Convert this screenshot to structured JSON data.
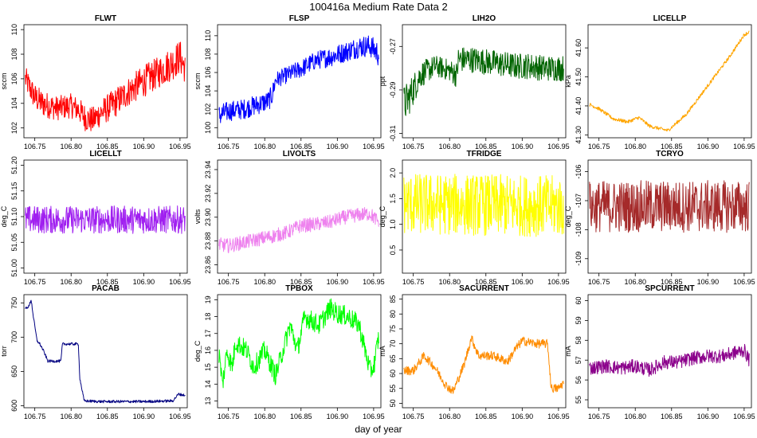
{
  "figure": {
    "title": "100416a   Medium Rate Data 2",
    "xlabel": "day of year"
  },
  "chart_data": [
    {
      "type": "line",
      "title": "FLWT",
      "ylabel": "sccm",
      "color": "#ff0000",
      "xlim": [
        106.735,
        106.96
      ],
      "xticks": [
        106.75,
        106.8,
        106.85,
        106.9,
        106.95
      ],
      "ylim": [
        101.2,
        110.4
      ],
      "yticks": [
        102,
        104,
        106,
        108,
        110
      ],
      "ytick_labels": [
        "102",
        "104",
        "106",
        "108",
        "110"
      ],
      "ylabel_rotated": true,
      "x": [
        106.737,
        106.75,
        106.76,
        106.78,
        106.8,
        106.81,
        106.82,
        106.83,
        106.84,
        106.86,
        106.88,
        106.9,
        106.92,
        106.94,
        106.95,
        106.957
      ],
      "center": [
        106.0,
        104.5,
        104.0,
        103.6,
        103.8,
        103.5,
        102.8,
        102.6,
        103.2,
        104.0,
        105.0,
        105.8,
        106.5,
        107.3,
        107.8,
        106.8
      ],
      "spread": [
        1.0,
        1.1,
        1.1,
        1.0,
        1.0,
        1.0,
        1.1,
        1.1,
        1.1,
        1.2,
        1.2,
        1.3,
        1.3,
        1.4,
        1.4,
        1.2
      ]
    },
    {
      "type": "line",
      "title": "FLSP",
      "ylabel": "sccm",
      "color": "#0000ff",
      "xlim": [
        106.735,
        106.96
      ],
      "xticks": [
        106.75,
        106.8,
        106.85,
        106.9,
        106.95
      ],
      "ylim": [
        98.9,
        111.2
      ],
      "yticks": [
        100,
        102,
        104,
        106,
        108,
        110
      ],
      "ytick_labels": [
        "100",
        "102",
        "104",
        "106",
        "108",
        "110"
      ],
      "ylabel_rotated": true,
      "x": [
        106.737,
        106.75,
        106.77,
        106.79,
        106.805,
        106.81,
        106.815,
        106.83,
        106.85,
        106.87,
        106.89,
        106.91,
        106.93,
        106.945,
        106.957
      ],
      "center": [
        101.3,
        101.8,
        102.0,
        102.5,
        102.9,
        103.5,
        105.2,
        105.7,
        106.4,
        107.3,
        107.7,
        108.2,
        108.8,
        108.9,
        108.0
      ],
      "spread": [
        1.2,
        1.1,
        1.1,
        1.1,
        1.1,
        1.1,
        0.9,
        0.9,
        1.0,
        1.0,
        1.1,
        1.1,
        1.2,
        1.2,
        1.4
      ]
    },
    {
      "type": "line",
      "title": "LIH2O",
      "ylabel": "ppt",
      "color": "#006400",
      "xlim": [
        106.735,
        106.96
      ],
      "xticks": [
        106.75,
        106.8,
        106.85,
        106.9,
        106.95
      ],
      "ylim": [
        -0.312,
        -0.26
      ],
      "yticks": [
        -0.31,
        -0.29,
        -0.27
      ],
      "ytick_labels": [
        "-0.31",
        "-0.29",
        "-0.27"
      ],
      "ylabel_rotated": true,
      "x": [
        106.737,
        106.745,
        106.76,
        106.78,
        106.8,
        106.81,
        106.812,
        106.83,
        106.85,
        106.87,
        106.89,
        106.91,
        106.93,
        106.957
      ],
      "center": [
        -0.297,
        -0.293,
        -0.283,
        -0.279,
        -0.281,
        -0.283,
        -0.276,
        -0.276,
        -0.277,
        -0.278,
        -0.279,
        -0.279,
        -0.28,
        -0.28
      ],
      "spread": [
        0.009,
        0.008,
        0.006,
        0.005,
        0.005,
        0.006,
        0.006,
        0.006,
        0.006,
        0.006,
        0.006,
        0.006,
        0.006,
        0.006
      ]
    },
    {
      "type": "line",
      "title": "LICELLP",
      "ylabel": "kPa",
      "color": "#ffa500",
      "xlim": [
        106.735,
        106.96
      ],
      "xticks": [
        106.75,
        106.8,
        106.85,
        106.9,
        106.95
      ],
      "ylim": [
        41.29,
        41.68
      ],
      "yticks": [
        41.3,
        41.4,
        41.5,
        41.6
      ],
      "ytick_labels": [
        "41.30",
        "41.40",
        "41.50",
        "41.60"
      ],
      "ylabel_rotated": true,
      "x": [
        106.737,
        106.75,
        106.77,
        106.79,
        106.805,
        106.82,
        106.845,
        106.87,
        106.9,
        106.93,
        106.95,
        106.957
      ],
      "center": [
        41.405,
        41.39,
        41.355,
        41.345,
        41.36,
        41.33,
        41.315,
        41.37,
        41.47,
        41.57,
        41.645,
        41.655
      ],
      "spread": [
        0.006,
        0.006,
        0.006,
        0.006,
        0.006,
        0.006,
        0.006,
        0.006,
        0.006,
        0.006,
        0.006,
        0.006
      ]
    },
    {
      "type": "line",
      "title": "LICELLT",
      "ylabel": "deg_C",
      "color": "#a020f0",
      "xlim": [
        106.735,
        106.96
      ],
      "xticks": [
        106.75,
        106.8,
        106.85,
        106.9,
        106.95
      ],
      "ylim": [
        50.99,
        51.21
      ],
      "yticks": [
        51.0,
        51.05,
        51.1,
        51.15,
        51.2
      ],
      "ytick_labels": [
        "51.00",
        "51.05",
        "51.10",
        "51.15",
        "51.20"
      ],
      "ylabel_rotated": true,
      "x": [
        106.737,
        106.957
      ],
      "center": [
        51.094,
        51.094
      ],
      "spread": [
        0.027,
        0.027
      ]
    },
    {
      "type": "line",
      "title": "LIVOLTS",
      "ylabel": "volts",
      "color": "#ee82ee",
      "xlim": [
        106.735,
        106.96
      ],
      "xticks": [
        106.75,
        106.8,
        106.85,
        106.9,
        106.95
      ],
      "ylim": [
        23.853,
        23.948
      ],
      "yticks": [
        23.86,
        23.88,
        23.9,
        23.92,
        23.94
      ],
      "ytick_labels": [
        "23.86",
        "23.88",
        "23.90",
        "23.92",
        "23.94"
      ],
      "ylabel_rotated": true,
      "x": [
        106.737,
        106.75,
        106.78,
        106.81,
        106.83,
        106.85,
        106.87,
        106.89,
        106.91,
        106.93,
        106.945,
        106.957
      ],
      "center": [
        23.877,
        23.876,
        23.88,
        23.884,
        23.887,
        23.893,
        23.894,
        23.896,
        23.9,
        23.902,
        23.903,
        23.896
      ],
      "spread": [
        0.006,
        0.006,
        0.006,
        0.006,
        0.006,
        0.006,
        0.006,
        0.006,
        0.006,
        0.006,
        0.006,
        0.006
      ]
    },
    {
      "type": "line",
      "title": "TFRIDGE",
      "ylabel": "deg_C",
      "color": "#ffff00",
      "xlim": [
        106.735,
        106.96
      ],
      "xticks": [
        106.75,
        106.8,
        106.85,
        106.9,
        106.95
      ],
      "ylim": [
        0.05,
        2.25
      ],
      "yticks": [
        0.5,
        1.0,
        1.5,
        2.0
      ],
      "ytick_labels": [
        "0.5",
        "1.0",
        "1.5",
        "2.0"
      ],
      "ylabel_rotated": true,
      "x": [
        106.737,
        106.957
      ],
      "center": [
        1.4,
        1.35
      ],
      "spread": [
        0.6,
        0.6
      ]
    },
    {
      "type": "line",
      "title": "TCRYO",
      "ylabel": "deg_C",
      "color": "#a52a2a",
      "xlim": [
        106.735,
        106.96
      ],
      "xticks": [
        106.75,
        106.8,
        106.85,
        106.9,
        106.95
      ],
      "ylim": [
        -109.5,
        -105.6
      ],
      "yticks": [
        -109,
        -108,
        -107,
        -106
      ],
      "ytick_labels": [
        "-109",
        "-108",
        "-107",
        "-106"
      ],
      "ylabel_rotated": true,
      "x": [
        106.737,
        106.957
      ],
      "center": [
        -107.2,
        -107.2
      ],
      "spread": [
        0.9,
        0.9
      ]
    },
    {
      "type": "line",
      "title": "PACAB",
      "ylabel": "torr",
      "color": "#000080",
      "xlim": [
        106.735,
        106.96
      ],
      "xticks": [
        106.75,
        106.8,
        106.85,
        106.9,
        106.95
      ],
      "ylim": [
        597,
        762
      ],
      "yticks": [
        600,
        650,
        700,
        750
      ],
      "ytick_labels": [
        "600",
        "650",
        "700",
        "750"
      ],
      "ylabel_rotated": true,
      "x": [
        106.737,
        106.742,
        106.745,
        106.748,
        106.753,
        106.757,
        106.762,
        106.768,
        106.772,
        106.78,
        106.786,
        106.788,
        106.8,
        106.81,
        106.812,
        106.818,
        106.84,
        106.9,
        106.94,
        106.948,
        106.957
      ],
      "center": [
        742,
        745,
        755,
        730,
        695,
        690,
        680,
        665,
        665,
        665,
        665,
        690,
        690,
        690,
        640,
        607,
        606,
        606,
        607,
        617,
        615
      ],
      "spread": [
        2,
        2,
        2,
        2,
        2,
        2,
        2,
        2,
        2,
        2,
        2,
        2,
        2,
        2,
        2,
        2,
        2,
        2,
        2,
        2,
        2
      ]
    },
    {
      "type": "line",
      "title": "TPBOX",
      "ylabel": "deg_C",
      "color": "#00ff00",
      "xlim": [
        106.735,
        106.96
      ],
      "xticks": [
        106.75,
        106.8,
        106.85,
        106.9,
        106.95
      ],
      "ylim": [
        12.6,
        19.3
      ],
      "yticks": [
        13,
        14,
        15,
        16,
        17,
        18,
        19
      ],
      "ytick_labels": [
        "13",
        "14",
        "15",
        "16",
        "17",
        "18",
        "19"
      ],
      "ylabel_rotated": true,
      "x": [
        106.737,
        106.742,
        106.748,
        106.755,
        106.76,
        106.775,
        106.785,
        106.8,
        106.815,
        106.825,
        106.835,
        106.845,
        106.855,
        106.875,
        106.89,
        106.9,
        106.915,
        106.93,
        106.945,
        106.95,
        106.957
      ],
      "center": [
        15.8,
        14.0,
        16.0,
        15.0,
        16.5,
        16.0,
        15.0,
        16.0,
        14.5,
        16.0,
        17.5,
        16.0,
        18.0,
        17.5,
        18.5,
        18.2,
        18.0,
        17.5,
        14.8,
        15.0,
        16.8
      ],
      "spread": [
        0.6,
        0.6,
        0.6,
        0.6,
        0.6,
        0.6,
        0.6,
        0.6,
        0.6,
        0.6,
        0.6,
        0.6,
        0.6,
        0.6,
        0.6,
        0.6,
        0.6,
        0.6,
        0.6,
        0.6,
        0.6
      ]
    },
    {
      "type": "line",
      "title": "SACURRENT",
      "ylabel": "mA",
      "color": "#ff8c00",
      "xlim": [
        106.735,
        106.96
      ],
      "xticks": [
        106.75,
        106.8,
        106.85,
        106.9,
        106.95
      ],
      "ylim": [
        48.5,
        86.5
      ],
      "yticks": [
        50,
        55,
        60,
        65,
        70,
        75,
        80,
        85
      ],
      "ytick_labels": [
        "50",
        "55",
        "60",
        "65",
        "70",
        "75",
        "80",
        "85"
      ],
      "ylabel_rotated": true,
      "x": [
        106.737,
        106.75,
        106.765,
        106.78,
        106.795,
        106.805,
        106.82,
        106.83,
        106.84,
        106.86,
        106.88,
        106.89,
        106.9,
        106.92,
        106.935,
        106.94,
        106.95,
        106.957
      ],
      "center": [
        61,
        61,
        66,
        62,
        56,
        54,
        63,
        72,
        66,
        66,
        64,
        68,
        71,
        70,
        70,
        55,
        55,
        57
      ],
      "spread": [
        1.5,
        1.5,
        1.5,
        1.5,
        1.5,
        1.5,
        1.5,
        1.5,
        1.5,
        1.5,
        1.5,
        1.5,
        1.5,
        1.5,
        1.5,
        1.5,
        1.5,
        1.5
      ]
    },
    {
      "type": "line",
      "title": "SPCURRENT",
      "ylabel": "mA",
      "color": "#8b008b",
      "xlim": [
        106.735,
        106.96
      ],
      "xticks": [
        106.75,
        106.8,
        106.85,
        106.9,
        106.95
      ],
      "ylim": [
        54.6,
        60.3
      ],
      "yticks": [
        55,
        56,
        57,
        58,
        59,
        60
      ],
      "ytick_labels": [
        "55",
        "56",
        "57",
        "58",
        "59",
        "60"
      ],
      "ylabel_rotated": true,
      "x": [
        106.737,
        106.76,
        106.78,
        106.8,
        106.82,
        106.84,
        106.86,
        106.88,
        106.9,
        106.92,
        106.94,
        106.95,
        106.957
      ],
      "center": [
        56.6,
        56.7,
        56.6,
        56.7,
        56.5,
        56.9,
        56.9,
        57.1,
        57.2,
        57.2,
        57.4,
        57.5,
        57.0
      ],
      "spread": [
        0.35,
        0.35,
        0.35,
        0.35,
        0.35,
        0.35,
        0.35,
        0.35,
        0.35,
        0.35,
        0.35,
        0.35,
        0.35
      ]
    }
  ]
}
